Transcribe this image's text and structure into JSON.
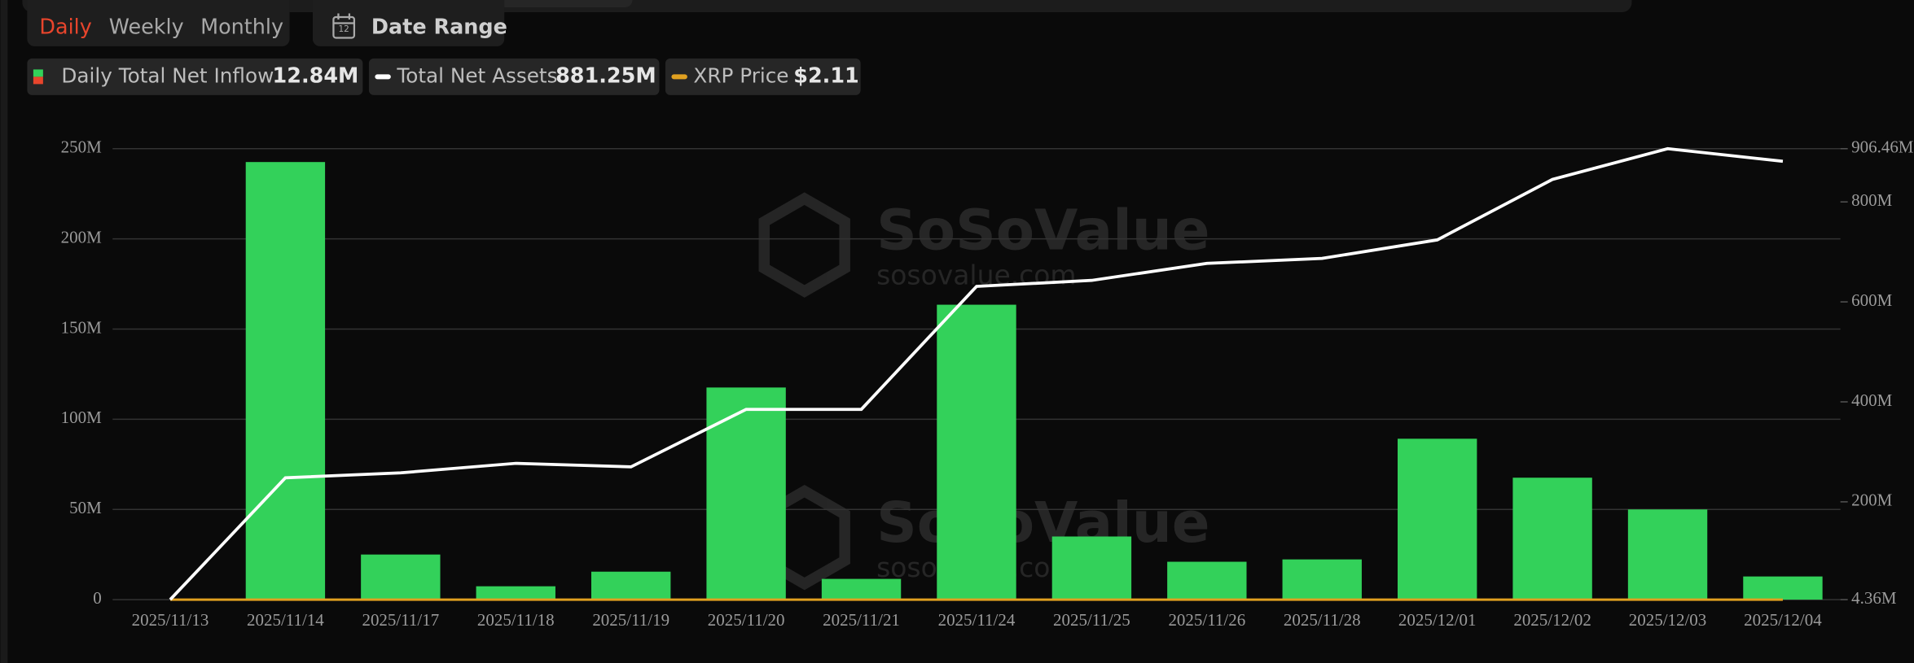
{
  "header": {
    "tabs": [
      "Daily",
      "Weekly",
      "Monthly"
    ],
    "active_tab": 0,
    "date_range": "Date Range"
  },
  "chart_data": {
    "type": "bar",
    "watermark": {
      "brand": "SoSoValue",
      "site": "sosovalue.com"
    },
    "categories": [
      "2025/11/13",
      "2025/11/14",
      "2025/11/17",
      "2025/11/18",
      "2025/11/19",
      "2025/11/20",
      "2025/11/21",
      "2025/11/24",
      "2025/11/25",
      "2025/11/26",
      "2025/11/28",
      "2025/12/01",
      "2025/12/02",
      "2025/12/03",
      "2025/12/04"
    ],
    "series": [
      {
        "name": "Daily Total Net Inflow",
        "type": "bar",
        "color": "#33d15a",
        "legend_value": "12.84M",
        "values": [
          0,
          242600000,
          25000000,
          7400000,
          15500000,
          117600000,
          11500000,
          163500000,
          35000000,
          21000000,
          22300000,
          89200000,
          67600000,
          50000000,
          12840000
        ]
      },
      {
        "name": "Total Net Assets",
        "type": "line",
        "axis": "y2",
        "color": "#ffffff",
        "legend_value": "881.25M",
        "values": [
          4360000,
          248000000,
          258000000,
          277000000,
          270000000,
          385000000,
          385000000,
          631000000,
          643000000,
          677000000,
          687000000,
          724000000,
          845000000,
          906460000,
          881250000
        ]
      },
      {
        "name": "XRP Price",
        "type": "line",
        "color": "#e0a020",
        "legend_value": "$2.11",
        "values": [
          2.4,
          2.28,
          2.2,
          2.14,
          2.19,
          2.03,
          1.96,
          2.05,
          2.2,
          2.21,
          2.19,
          2.05,
          2.18,
          2.22,
          2.11
        ]
      }
    ],
    "ylim": [
      0,
      250000000
    ],
    "yticks": [
      0,
      {
        "value": 50000000,
        "label": "50M"
      },
      {
        "value": 100000000,
        "label": "100M"
      },
      {
        "value": 150000000,
        "label": "150M"
      },
      {
        "value": 200000000,
        "label": "200M"
      },
      {
        "value": 250000000,
        "label": "250M"
      }
    ],
    "y2lim": [
      4360000,
      906460000
    ],
    "y2ticks": [
      {
        "value": 4360000,
        "label": "4.36M"
      },
      {
        "value": 200000000,
        "label": "200M"
      },
      {
        "value": 400000000,
        "label": "400M"
      },
      {
        "value": 600000000,
        "label": "600M"
      },
      {
        "value": 800000000,
        "label": "800M"
      },
      {
        "value": 906460000,
        "label": "906.46M"
      }
    ],
    "grid": true
  }
}
